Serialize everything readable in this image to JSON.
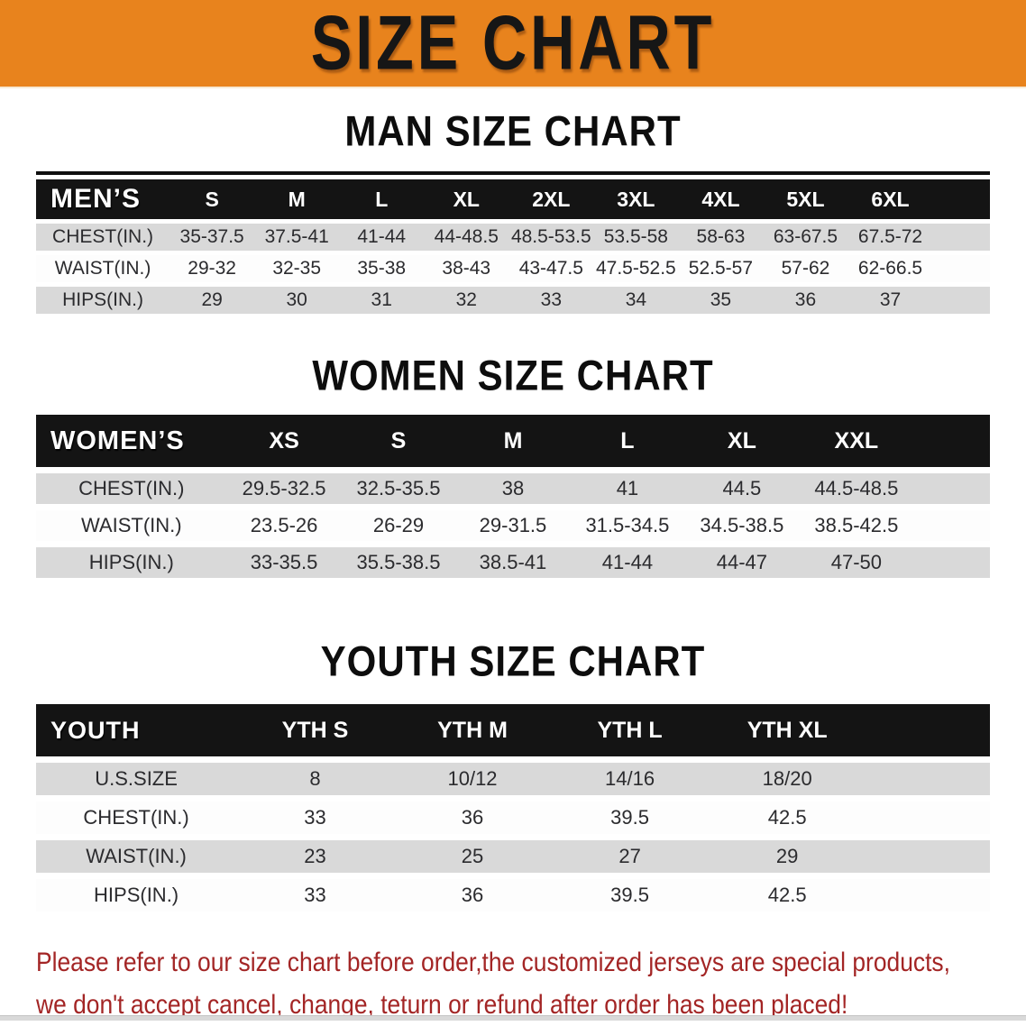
{
  "banner": {
    "title": "SIZE CHART",
    "bg_color": "#E8831D",
    "text_color": "#161616"
  },
  "sections": [
    {
      "heading": "MAN SIZE CHART",
      "table": {
        "corner_label": "MEN’S",
        "columns": [
          "S",
          "M",
          "L",
          "XL",
          "2XL",
          "3XL",
          "4XL",
          "5XL",
          "6XL"
        ],
        "rows": [
          {
            "label": "CHEST(IN.)",
            "values": [
              "35-37.5",
              "37.5-41",
              "41-44",
              "44-48.5",
              "48.5-53.5",
              "53.5-58",
              "58-63",
              "63-67.5",
              "67.5-72"
            ]
          },
          {
            "label": "WAIST(IN.)",
            "values": [
              "29-32",
              "32-35",
              "35-38",
              "38-43",
              "43-47.5",
              "47.5-52.5",
              "52.5-57",
              "57-62",
              "62-66.5"
            ]
          },
          {
            "label": "HIPS(IN.)",
            "values": [
              "29",
              "30",
              "31",
              "32",
              "33",
              "34",
              "35",
              "36",
              "37"
            ]
          }
        ]
      }
    },
    {
      "heading": "WOMEN SIZE CHART",
      "table": {
        "corner_label": "WOMEN’S",
        "columns": [
          "XS",
          "S",
          "M",
          "L",
          "XL",
          "XXL"
        ],
        "rows": [
          {
            "label": "CHEST(IN.)",
            "values": [
              "29.5-32.5",
              "32.5-35.5",
              "38",
              "41",
              "44.5",
              "44.5-48.5"
            ]
          },
          {
            "label": "WAIST(IN.)",
            "values": [
              "23.5-26",
              "26-29",
              "29-31.5",
              "31.5-34.5",
              "34.5-38.5",
              "38.5-42.5"
            ]
          },
          {
            "label": "HIPS(IN.)",
            "values": [
              "33-35.5",
              "35.5-38.5",
              "38.5-41",
              "41-44",
              "44-47",
              "47-50"
            ]
          }
        ]
      }
    },
    {
      "heading": "YOUTH SIZE CHART",
      "table": {
        "corner_label": "YOUTH",
        "columns": [
          "YTH S",
          "YTH M",
          "YTH L",
          "YTH XL"
        ],
        "rows": [
          {
            "label": "U.S.SIZE",
            "values": [
              "8",
              "10/12",
              "14/16",
              "18/20"
            ]
          },
          {
            "label": "CHEST(IN.)",
            "values": [
              "33",
              "36",
              "39.5",
              "42.5"
            ]
          },
          {
            "label": "WAIST(IN.)",
            "values": [
              "23",
              "25",
              "27",
              "29"
            ]
          },
          {
            "label": "HIPS(IN.)",
            "values": [
              "33",
              "36",
              "39.5",
              "42.5"
            ]
          }
        ]
      }
    }
  ],
  "disclaimer": {
    "text_color": "#a32525",
    "lines": [
      "Please refer to our size chart before order,the customized jerseys are special products,",
      "we don't accept cancel, change, teturn or refund after order has been placed!"
    ]
  }
}
